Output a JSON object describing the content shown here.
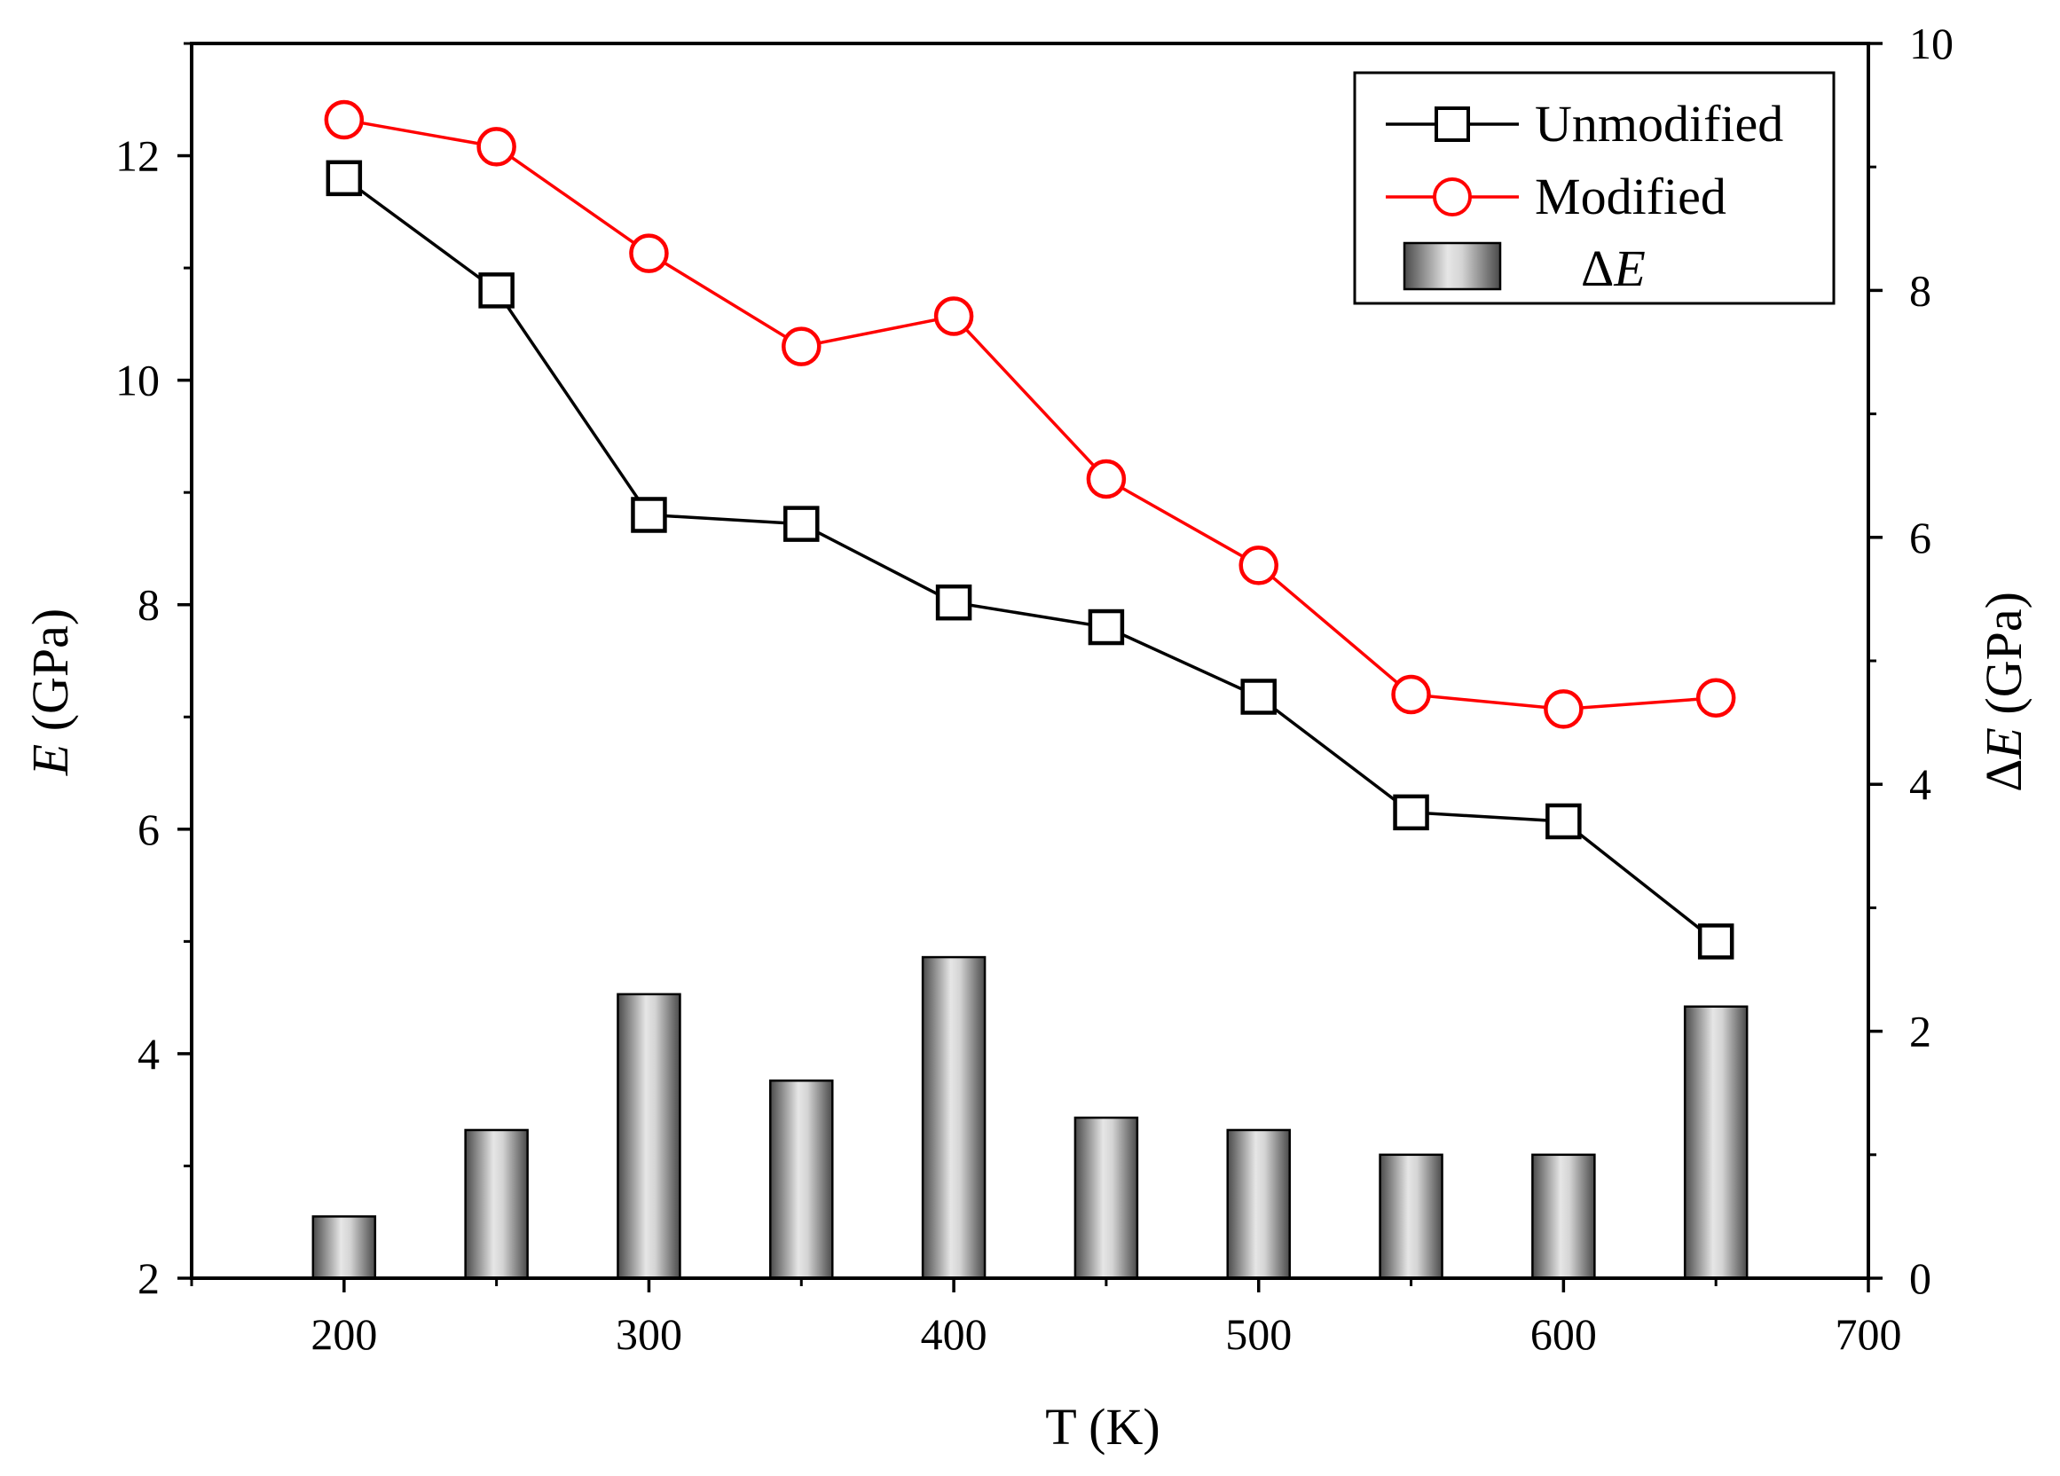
{
  "chart_data": {
    "type": "bar+line",
    "title": "",
    "xlabel": "T (K)",
    "ylabel_left": {
      "italic": "E",
      "rest": " (GPa)"
    },
    "ylabel_right": {
      "delta": "Δ",
      "italic": "E",
      "rest": " (GPa)"
    },
    "xlim": [
      150,
      700
    ],
    "ylim_left": [
      2,
      13
    ],
    "ylim_right": [
      0,
      10
    ],
    "x_ticks": [
      200,
      300,
      400,
      500,
      600,
      700
    ],
    "y_left_ticks": [
      2,
      4,
      6,
      8,
      10,
      12
    ],
    "y_right_ticks": [
      0,
      2,
      4,
      6,
      8,
      10
    ],
    "x": [
      200,
      250,
      300,
      350,
      400,
      450,
      500,
      550,
      600,
      650
    ],
    "series": [
      {
        "name": "Unmodified",
        "axis": "left",
        "kind": "line",
        "marker": "square",
        "color": "#000000",
        "values": [
          11.8,
          10.8,
          8.8,
          8.72,
          8.02,
          7.8,
          7.18,
          6.15,
          6.07,
          5.0
        ]
      },
      {
        "name": "Modified",
        "axis": "left",
        "kind": "line",
        "marker": "circle",
        "color": "#ff0000",
        "values": [
          12.32,
          12.08,
          11.13,
          10.3,
          10.57,
          9.12,
          8.35,
          7.2,
          7.07,
          7.17
        ]
      },
      {
        "name": "ΔE",
        "axis": "right",
        "kind": "bar",
        "color": "#b0b0b0",
        "values": [
          0.5,
          1.2,
          2.3,
          1.6,
          2.6,
          1.3,
          1.2,
          1.0,
          1.0,
          2.2
        ]
      }
    ],
    "legend": {
      "position": "top-right",
      "entries": [
        {
          "label": "Unmodified"
        },
        {
          "label": "Modified"
        },
        {
          "delta": "Δ",
          "italic": "E"
        }
      ]
    }
  }
}
